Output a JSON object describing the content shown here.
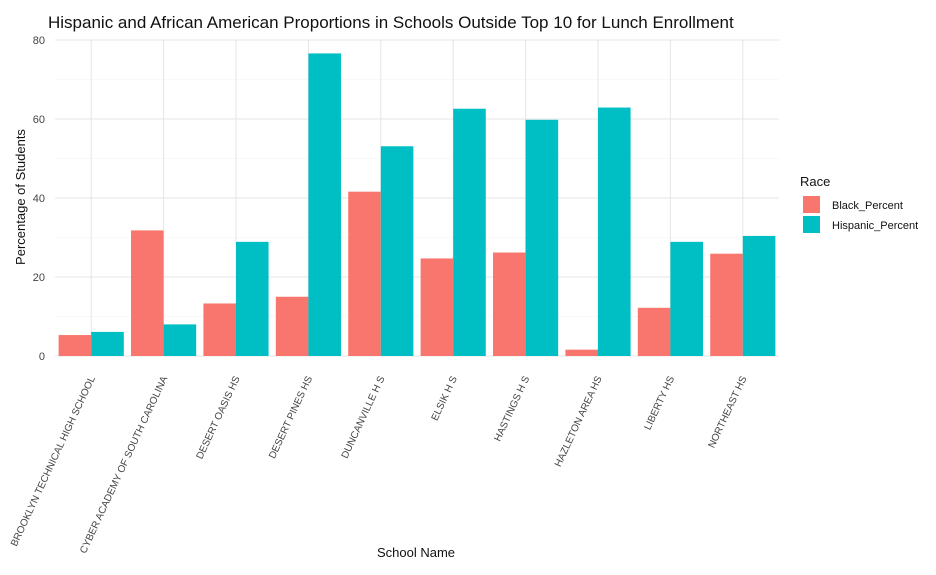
{
  "chart_data": {
    "type": "bar",
    "title": "Hispanic and African American Proportions in Schools Outside Top 10 for Lunch Enrollment",
    "xlabel": "School Name",
    "ylabel": "Percentage of Students",
    "categories": [
      "BROOKLYN TECHNICAL HIGH SCHOOL",
      "CYBER ACADEMY OF SOUTH CAROLINA",
      "DESERT OASIS HS",
      "DESERT PINES HS",
      "DUNCANVILLE H S",
      "ELSIK H S",
      "HASTINGS H S",
      "HAZLETON AREA HS",
      "LIBERTY HS",
      "NORTHEAST HS"
    ],
    "series": [
      {
        "name": "Black_Percent",
        "color": "#F8766D",
        "values": [
          5.3,
          31.8,
          13.3,
          15.0,
          41.6,
          24.7,
          26.2,
          1.6,
          12.2,
          25.9
        ]
      },
      {
        "name": "Hispanic_Percent",
        "color": "#00BFC4",
        "values": [
          6.1,
          8.0,
          28.9,
          76.6,
          53.1,
          62.6,
          59.8,
          62.9,
          28.9,
          30.4
        ]
      }
    ],
    "ylim": [
      0,
      80
    ],
    "yticks": [
      0,
      20,
      40,
      60,
      80
    ],
    "grid": true,
    "legend": {
      "title": "Race",
      "position": "right"
    }
  }
}
